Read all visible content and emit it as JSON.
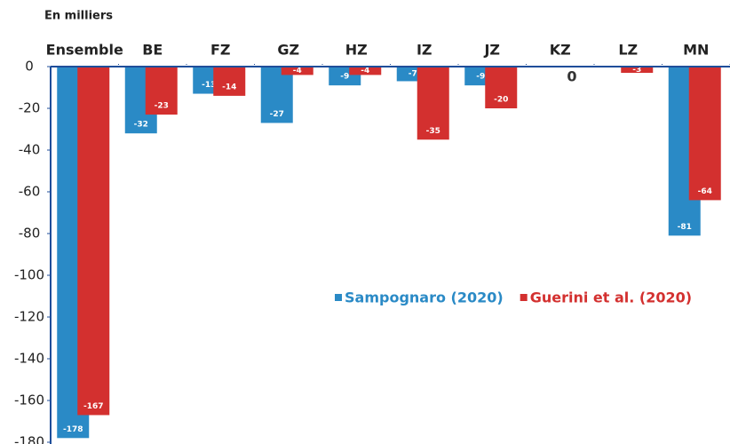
{
  "chart_data": {
    "type": "bar",
    "subtitle": "En milliers",
    "categories": [
      "Ensemble",
      "BE",
      "FZ",
      "GZ",
      "HZ",
      "IZ",
      "JZ",
      "KZ",
      "LZ",
      "MN"
    ],
    "series": [
      {
        "name": "Sampognaro (2020)",
        "color": "#2a8ac6",
        "values": [
          -178,
          -32,
          -13,
          -27,
          -9,
          -7,
          -9,
          null,
          0,
          -81
        ]
      },
      {
        "name": "Guerini et al. (2020)",
        "color": "#d3302f",
        "values": [
          -167,
          -23,
          -14,
          -4,
          -4,
          -35,
          -20,
          null,
          -3,
          -64
        ]
      }
    ],
    "annotation": "0",
    "ylim": [
      -180,
      0
    ],
    "yticks": [
      0,
      -20,
      -40,
      -60,
      -80,
      -100,
      -120,
      -140,
      -160,
      -180
    ]
  }
}
